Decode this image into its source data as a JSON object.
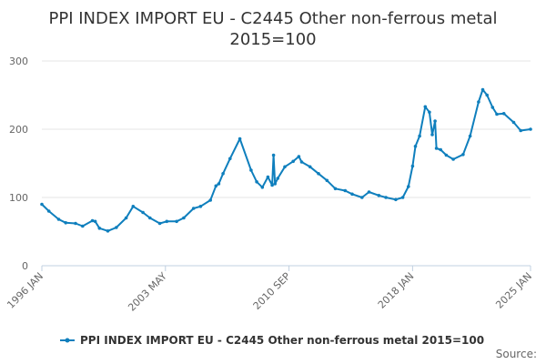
{
  "chart_data": {
    "type": "line",
    "title_lines": [
      "PPI INDEX IMPORT EU - C2445 Other non-ferrous metal",
      "2015=100"
    ],
    "xlabel": "",
    "ylabel": "",
    "ylim": [
      0,
      300
    ],
    "y_ticks": [
      0,
      100,
      200,
      300
    ],
    "x_tick_labels": [
      "1996 JAN",
      "2003 MAY",
      "2010 SEP",
      "2018 JAN",
      "2025 JAN"
    ],
    "grid": true,
    "legend_position": "bottom",
    "source_label": "Source:",
    "colors": {
      "series": "#0f7fbd",
      "grid": "#e6e6e6",
      "axis": "#c0d0e0"
    },
    "series": [
      {
        "name": "PPI INDEX IMPORT EU - C2445 Other non-ferrous metal 2015=100",
        "x": [
          "1996-01",
          "1996-06",
          "1997-01",
          "1997-06",
          "1998-01",
          "1998-06",
          "1999-01",
          "1999-03",
          "1999-06",
          "1999-12",
          "2000-06",
          "2001-01",
          "2001-06",
          "2002-01",
          "2002-06",
          "2003-01",
          "2003-06",
          "2004-01",
          "2004-06",
          "2005-01",
          "2005-06",
          "2006-01",
          "2006-05",
          "2006-07",
          "2006-10",
          "2007-03",
          "2007-10",
          "2008-06",
          "2008-10",
          "2009-02",
          "2009-06",
          "2009-09",
          "2009-10",
          "2009-11",
          "2010-01",
          "2010-06",
          "2010-12",
          "2011-04",
          "2011-06",
          "2011-12",
          "2012-06",
          "2012-12",
          "2013-06",
          "2014-01",
          "2014-06",
          "2015-01",
          "2015-06",
          "2016-01",
          "2016-06",
          "2017-01",
          "2017-06",
          "2017-10",
          "2018-01",
          "2018-03",
          "2018-06",
          "2018-10",
          "2019-01",
          "2019-03",
          "2019-05",
          "2019-06",
          "2019-09",
          "2020-01",
          "2020-06",
          "2021-01",
          "2021-06",
          "2021-12",
          "2022-03",
          "2022-06",
          "2022-10",
          "2023-01",
          "2023-06",
          "2024-01",
          "2024-06",
          "2025-01"
        ],
        "values": [
          90,
          80,
          68,
          63,
          62,
          58,
          66,
          65,
          55,
          51,
          56,
          70,
          87,
          78,
          70,
          62,
          65,
          65,
          70,
          84,
          87,
          96,
          117,
          120,
          135,
          157,
          186,
          140,
          123,
          115,
          130,
          118,
          162,
          120,
          128,
          145,
          153,
          160,
          152,
          145,
          135,
          125,
          113,
          110,
          105,
          100,
          108,
          103,
          100,
          97,
          100,
          116,
          146,
          175,
          190,
          233,
          225,
          192,
          212,
          172,
          170,
          162,
          156,
          163,
          190,
          240,
          258,
          250,
          232,
          222,
          223,
          210,
          198,
          200
        ]
      }
    ]
  }
}
